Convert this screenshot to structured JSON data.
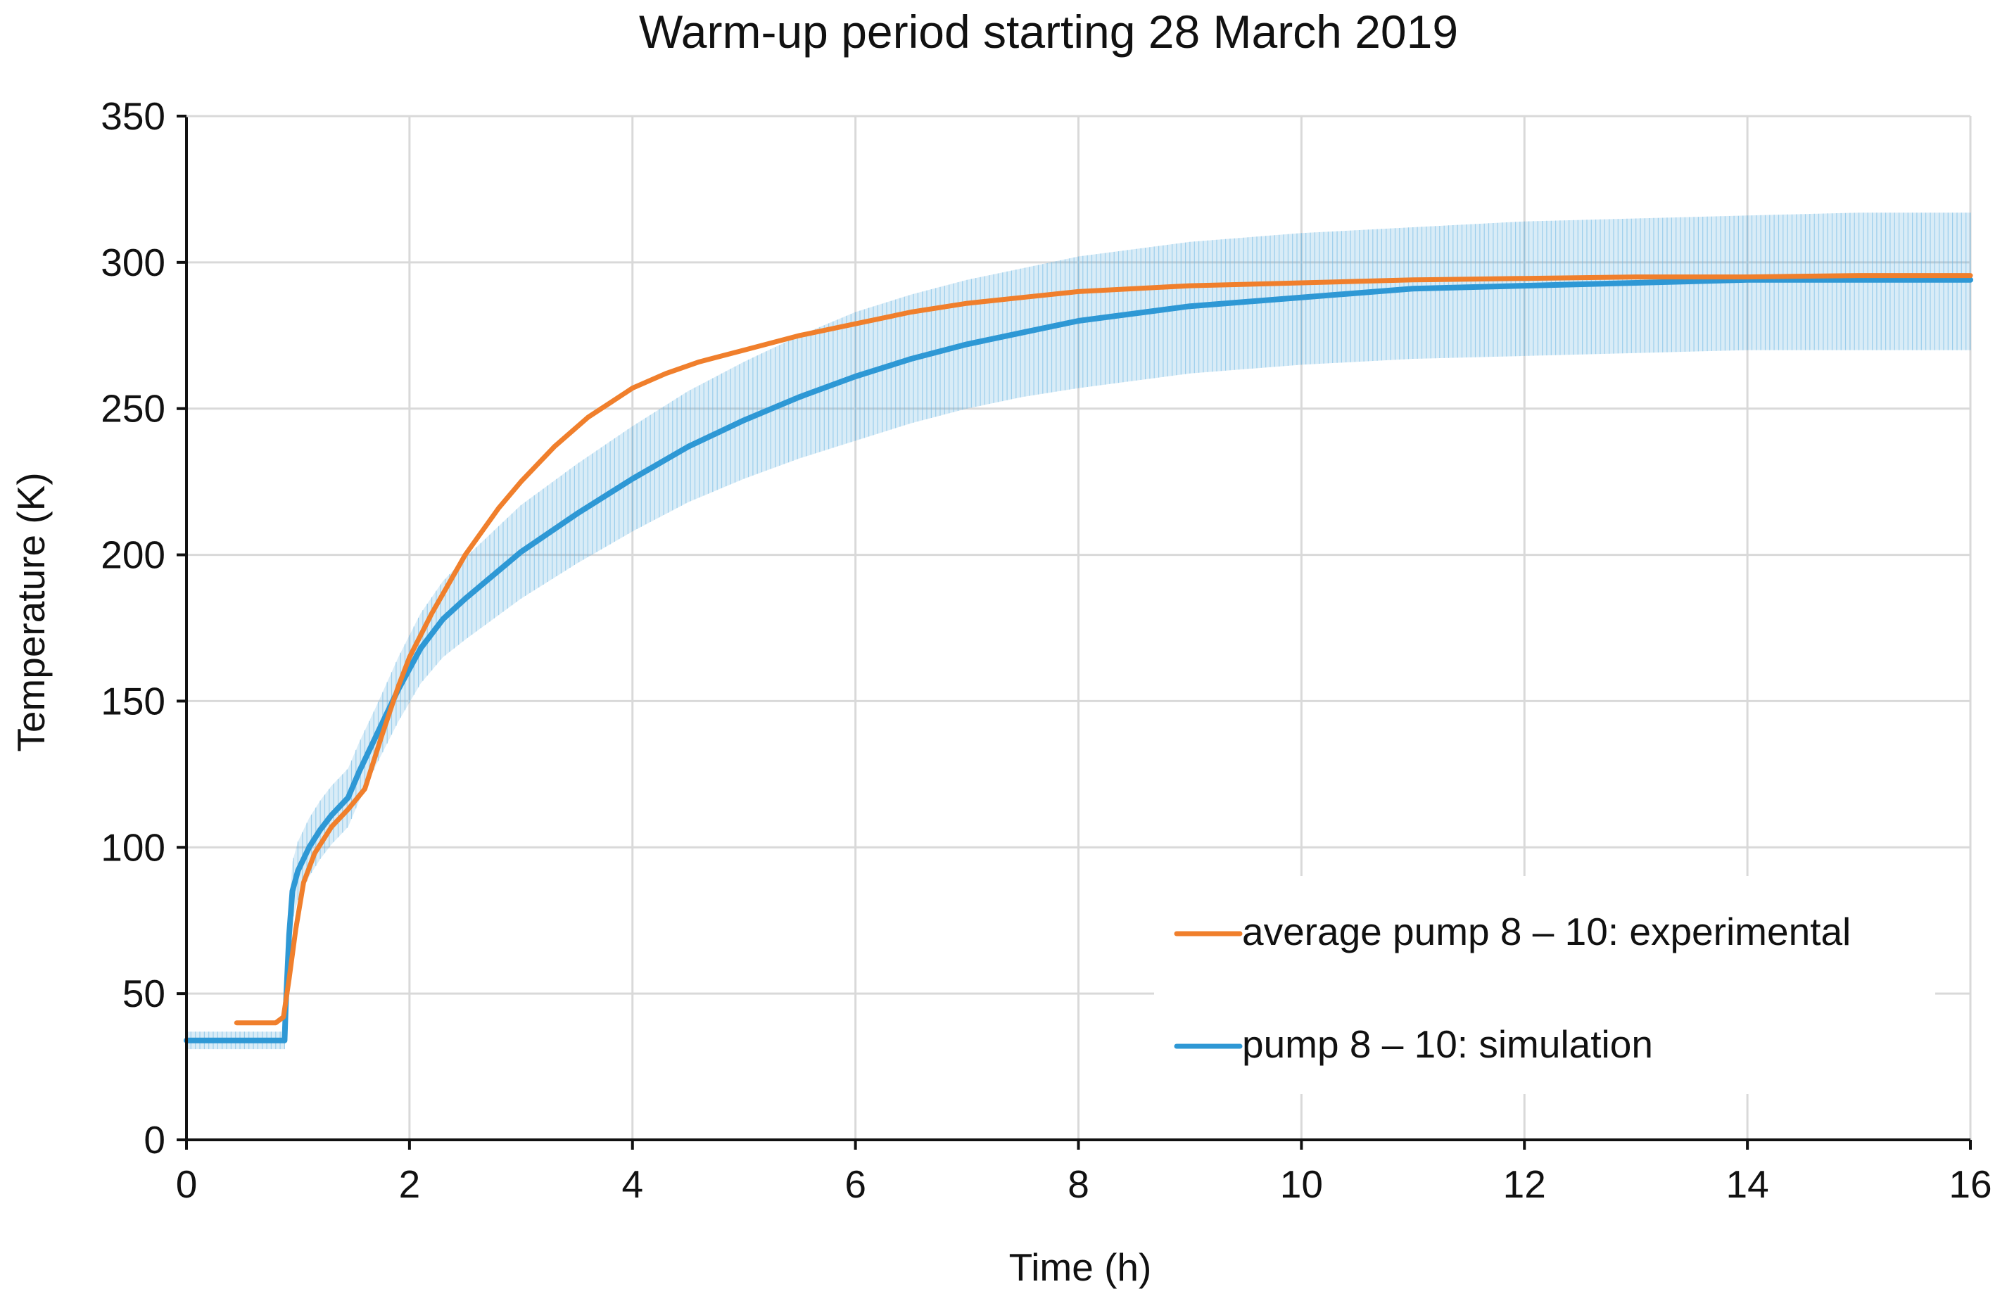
{
  "chart_data": {
    "type": "line",
    "title": "Warm-up period starting 28 March 2019",
    "xlabel": "Time (h)",
    "ylabel": "Temperature (K)",
    "xlim": [
      0,
      16
    ],
    "ylim": [
      0,
      350
    ],
    "x_ticks": [
      0,
      2,
      4,
      6,
      8,
      10,
      12,
      14,
      16
    ],
    "y_ticks": [
      0,
      50,
      100,
      150,
      200,
      250,
      300,
      350
    ],
    "x_tick_labels": [
      "0",
      "2",
      "4",
      "6",
      "8",
      "10",
      "12",
      "14",
      "16"
    ],
    "y_tick_labels": [
      "0",
      "50",
      "100",
      "150",
      "200",
      "250",
      "300",
      "350"
    ],
    "grid": true,
    "legend_position": "lower-right",
    "series": [
      {
        "name": "average pump 8 – 10: experimental",
        "color": "#f07f2c",
        "x": [
          0.45,
          0.8,
          0.87,
          0.92,
          0.98,
          1.05,
          1.15,
          1.3,
          1.45,
          1.6,
          1.75,
          1.9,
          2.0,
          2.2,
          2.5,
          2.8,
          3.0,
          3.3,
          3.6,
          3.8,
          4.0,
          4.3,
          4.6,
          5.0,
          5.5,
          6.0,
          6.5,
          7.0,
          7.5,
          8.0,
          9.0,
          10.0,
          11.0,
          12.0,
          13.0,
          14.0,
          15.0,
          16.0
        ],
        "y": [
          40,
          40,
          42,
          55,
          72,
          88,
          98,
          107,
          113,
          120,
          138,
          155,
          165,
          180,
          200,
          216,
          225,
          237,
          247,
          252,
          257,
          262,
          266,
          270,
          275,
          279,
          283,
          286,
          288,
          290,
          292,
          293,
          294,
          294.5,
          295,
          295,
          295.5,
          295.5
        ]
      },
      {
        "name": "pump 8 – 10: simulation",
        "color": "#2e98d5",
        "x": [
          0.0,
          0.88,
          0.89,
          0.92,
          0.95,
          1.0,
          1.1,
          1.2,
          1.3,
          1.45,
          1.55,
          1.7,
          1.9,
          2.1,
          2.3,
          2.5,
          3.0,
          3.5,
          4.0,
          4.5,
          5.0,
          5.5,
          6.0,
          6.5,
          7.0,
          7.5,
          8.0,
          9.0,
          10.0,
          11.0,
          12.0,
          13.0,
          14.0,
          15.0,
          16.0
        ],
        "y": [
          34,
          34,
          45,
          70,
          85,
          92,
          100,
          106,
          111,
          117,
          126,
          138,
          154,
          168,
          178,
          185,
          201,
          214,
          226,
          237,
          246,
          254,
          261,
          267,
          272,
          276,
          280,
          285,
          288,
          291,
          292,
          293,
          294,
          294,
          294
        ],
        "band_lower": [
          31,
          31,
          40,
          62,
          75,
          82,
          90,
          96,
          101,
          107,
          116,
          128,
          143,
          156,
          165,
          171,
          185,
          197,
          208,
          218,
          226,
          233,
          239,
          245,
          250,
          254,
          257,
          262,
          265,
          267,
          268,
          269,
          270,
          270,
          270
        ],
        "band_upper": [
          37,
          37,
          50,
          78,
          95,
          102,
          110,
          116,
          121,
          127,
          136,
          148,
          165,
          180,
          191,
          199,
          217,
          231,
          244,
          256,
          266,
          275,
          283,
          289,
          294,
          298,
          302,
          307,
          310,
          312,
          314,
          315,
          316,
          317,
          317
        ]
      }
    ]
  }
}
